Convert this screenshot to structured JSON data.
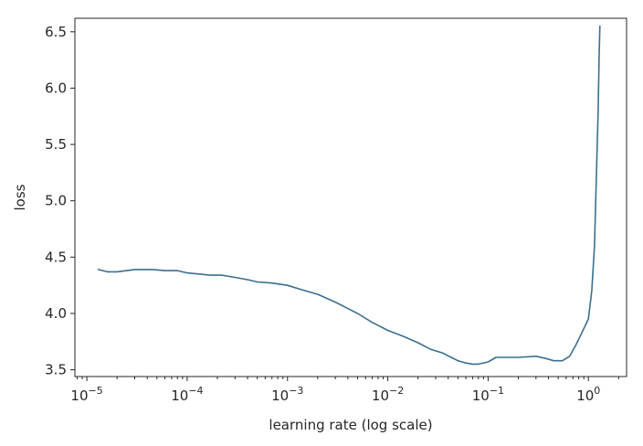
{
  "chart_data": {
    "type": "line",
    "title": "",
    "xlabel": "learning rate (log scale)",
    "ylabel": "loss",
    "x_scale": "log",
    "xlim": [
      7.6e-06,
      2.4
    ],
    "ylim": [
      3.44,
      6.62
    ],
    "grid": false,
    "x_ticks": [
      {
        "value": 1e-05,
        "base": "10",
        "exp": "−5"
      },
      {
        "value": 0.0001,
        "base": "10",
        "exp": "−4"
      },
      {
        "value": 0.001,
        "base": "10",
        "exp": "−3"
      },
      {
        "value": 0.01,
        "base": "10",
        "exp": "−2"
      },
      {
        "value": 0.1,
        "base": "10",
        "exp": "−1"
      },
      {
        "value": 1,
        "base": "10",
        "exp": "0"
      }
    ],
    "y_ticks": [
      {
        "value": 3.5,
        "label": "3.5"
      },
      {
        "value": 4.0,
        "label": "4.0"
      },
      {
        "value": 4.5,
        "label": "4.5"
      },
      {
        "value": 5.0,
        "label": "5.0"
      },
      {
        "value": 5.5,
        "label": "5.5"
      },
      {
        "value": 6.0,
        "label": "6.0"
      },
      {
        "value": 6.5,
        "label": "6.5"
      }
    ],
    "series": [
      {
        "color": "#3a6f8f",
        "x": [
          1.3e-05,
          1.6e-05,
          2e-05,
          2.5e-05,
          3e-05,
          3.5e-05,
          4.5e-05,
          6e-05,
          8e-05,
          0.0001,
          0.00013,
          0.00017,
          0.00022,
          0.0003,
          0.0004,
          0.0005,
          0.0007,
          0.001,
          0.0014,
          0.002,
          0.003,
          0.005,
          0.007,
          0.01,
          0.014,
          0.02,
          0.027,
          0.035,
          0.05,
          0.06,
          0.07,
          0.08,
          0.1,
          0.12,
          0.15,
          0.2,
          0.3,
          0.38,
          0.45,
          0.55,
          0.65,
          0.75,
          0.85,
          1.0,
          1.08,
          1.15,
          1.2,
          1.25,
          1.28,
          1.3
        ],
        "y": [
          4.39,
          4.37,
          4.37,
          4.38,
          4.39,
          4.39,
          4.39,
          4.38,
          4.38,
          4.36,
          4.35,
          4.34,
          4.34,
          4.32,
          4.3,
          4.28,
          4.27,
          4.25,
          4.21,
          4.17,
          4.1,
          4.0,
          3.92,
          3.85,
          3.8,
          3.74,
          3.68,
          3.65,
          3.58,
          3.56,
          3.55,
          3.55,
          3.57,
          3.61,
          3.61,
          3.61,
          3.62,
          3.6,
          3.58,
          3.58,
          3.62,
          3.72,
          3.82,
          3.95,
          4.2,
          4.6,
          5.2,
          5.8,
          6.3,
          6.55
        ]
      }
    ]
  }
}
